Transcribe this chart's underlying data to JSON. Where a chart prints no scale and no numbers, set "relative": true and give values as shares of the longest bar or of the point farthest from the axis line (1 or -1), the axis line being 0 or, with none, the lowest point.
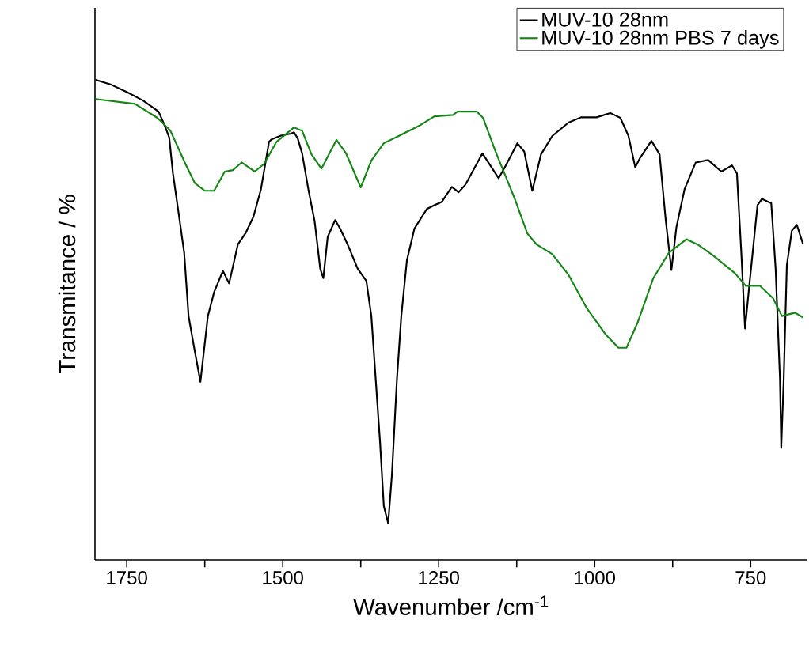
{
  "chart_data": {
    "type": "line",
    "relative": true,
    "xlabel": "Wavenumber /cm$^{-1}$",
    "ylabel": "Transmitance / %",
    "xlim": [
      1801,
      659
    ],
    "xticks": [
      1750,
      {
        "value": 1625,
        "label": null
      },
      1500,
      {
        "value": 1375,
        "label": null
      },
      1250,
      {
        "value": 1125,
        "label": null
      },
      1000,
      {
        "value": 875,
        "label": null
      },
      750
    ],
    "legend": "top right",
    "series": [
      {
        "name": "MUV-10 28nm",
        "color": "#000000",
        "x": [
          1800,
          1775,
          1749,
          1724,
          1699,
          1689,
          1682,
          1676,
          1667,
          1658,
          1651,
          1642,
          1632,
          1620,
          1610,
          1596,
          1586,
          1572,
          1559,
          1547,
          1535,
          1522,
          1518,
          1503,
          1487,
          1482,
          1476,
          1469,
          1459,
          1449,
          1440,
          1435,
          1428,
          1416,
          1408,
          1396,
          1380,
          1366,
          1358,
          1351,
          1344,
          1338,
          1331,
          1325,
          1317,
          1310,
          1301,
          1289,
          1269,
          1257,
          1245,
          1229,
          1218,
          1207,
          1180,
          1154,
          1144,
          1124,
          1113,
          1100,
          1086,
          1068,
          1042,
          1022,
          997,
          975,
          959,
          946,
          935,
          927,
          909,
          896,
          886,
          877,
          869,
          856,
          838,
          818,
          797,
          780,
          772,
          765,
          759,
          752,
          739,
          732,
          717,
          710,
          703,
          701,
          697,
          692,
          684,
          676,
          666
        ],
        "values": [
          1.0,
          0.99,
          0.974,
          0.957,
          0.934,
          0.904,
          0.88,
          0.805,
          0.723,
          0.64,
          0.508,
          0.442,
          0.371,
          0.508,
          0.558,
          0.602,
          0.576,
          0.657,
          0.682,
          0.715,
          0.772,
          0.871,
          0.876,
          0.884,
          0.888,
          0.891,
          0.878,
          0.847,
          0.772,
          0.706,
          0.607,
          0.587,
          0.673,
          0.708,
          0.69,
          0.657,
          0.607,
          0.581,
          0.508,
          0.376,
          0.244,
          0.112,
          0.076,
          0.178,
          0.376,
          0.508,
          0.624,
          0.69,
          0.731,
          0.739,
          0.746,
          0.777,
          0.766,
          0.782,
          0.847,
          0.795,
          0.818,
          0.868,
          0.851,
          0.769,
          0.845,
          0.883,
          0.911,
          0.922,
          0.922,
          0.931,
          0.921,
          0.884,
          0.818,
          0.838,
          0.873,
          0.845,
          0.706,
          0.604,
          0.693,
          0.772,
          0.828,
          0.833,
          0.809,
          0.822,
          0.805,
          0.64,
          0.482,
          0.574,
          0.739,
          0.752,
          0.743,
          0.607,
          0.376,
          0.233,
          0.376,
          0.614,
          0.686,
          0.698,
          0.658
        ]
      },
      {
        "name": "MUV-10 28nm PBS 7 days",
        "color": "#138613",
        "x": [
          1800,
          1737,
          1701,
          1680,
          1656,
          1641,
          1625,
          1610,
          1593,
          1580,
          1566,
          1545,
          1530,
          1510,
          1482,
          1469,
          1454,
          1438,
          1414,
          1399,
          1375,
          1358,
          1338,
          1313,
          1282,
          1257,
          1227,
          1220,
          1189,
          1179,
          1159,
          1128,
          1108,
          1093,
          1068,
          1042,
          1013,
          982,
          962,
          949,
          931,
          906,
          881,
          853,
          835,
          810,
          775,
          758,
          735,
          714,
          700,
          679,
          666
        ],
        "values": [
          0.96,
          0.95,
          0.921,
          0.894,
          0.825,
          0.785,
          0.769,
          0.769,
          0.809,
          0.812,
          0.828,
          0.809,
          0.825,
          0.871,
          0.901,
          0.894,
          0.845,
          0.815,
          0.875,
          0.848,
          0.776,
          0.832,
          0.868,
          0.884,
          0.904,
          0.924,
          0.927,
          0.934,
          0.934,
          0.921,
          0.851,
          0.752,
          0.68,
          0.657,
          0.637,
          0.594,
          0.525,
          0.469,
          0.442,
          0.442,
          0.495,
          0.587,
          0.64,
          0.668,
          0.657,
          0.634,
          0.597,
          0.571,
          0.571,
          0.545,
          0.508,
          0.515,
          0.505
        ]
      }
    ]
  }
}
